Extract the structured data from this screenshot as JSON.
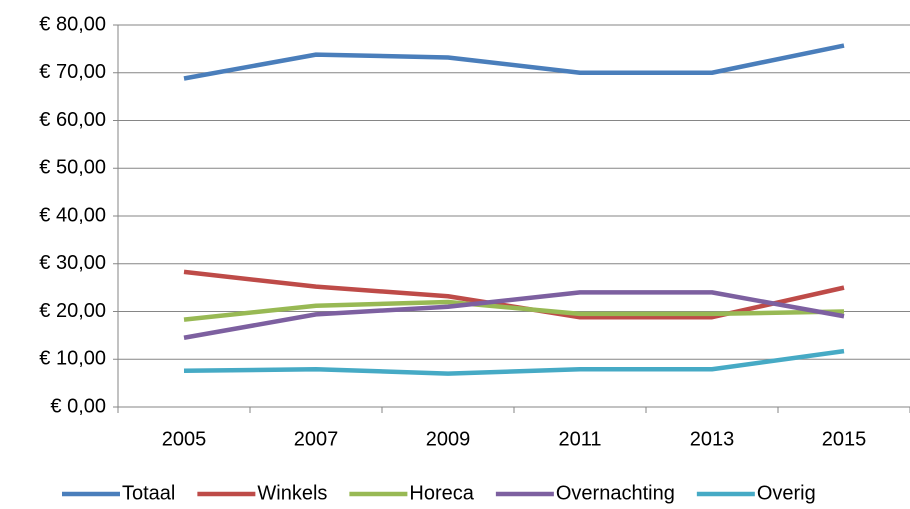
{
  "chart_data": {
    "type": "line",
    "categories": [
      "2005",
      "2007",
      "2009",
      "2011",
      "2013",
      "2015"
    ],
    "series": [
      {
        "name": "Totaal",
        "color": "#4a7ebb",
        "values": [
          68.8,
          73.8,
          73.2,
          70,
          70,
          75.7
        ]
      },
      {
        "name": "Winkels",
        "color": "#be4b48",
        "values": [
          28.3,
          25.2,
          23.2,
          18.8,
          18.8,
          25
        ]
      },
      {
        "name": "Horeca",
        "color": "#98b954",
        "values": [
          18.3,
          21.2,
          22,
          19.5,
          19.5,
          20
        ]
      },
      {
        "name": "Overnachting",
        "color": "#7d60a0",
        "values": [
          14.5,
          19.4,
          21,
          24,
          24,
          19
        ]
      },
      {
        "name": "Overig",
        "color": "#46aac5",
        "values": [
          7.6,
          7.9,
          7,
          7.9,
          7.9,
          11.7
        ]
      }
    ],
    "ylim": [
      0,
      80
    ],
    "yticks": [
      {
        "value": 0,
        "label": "€ 0,00"
      },
      {
        "value": 10,
        "label": "€ 10,00"
      },
      {
        "value": 20,
        "label": "€ 20,00"
      },
      {
        "value": 30,
        "label": "€ 30,00"
      },
      {
        "value": 40,
        "label": "€ 40,00"
      },
      {
        "value": 50,
        "label": "€ 50,00"
      },
      {
        "value": 60,
        "label": "€ 60,00"
      },
      {
        "value": 70,
        "label": "€ 70,00"
      },
      {
        "value": 80,
        "label": "€ 80,00"
      }
    ],
    "grid": true,
    "legend": "bottom"
  }
}
